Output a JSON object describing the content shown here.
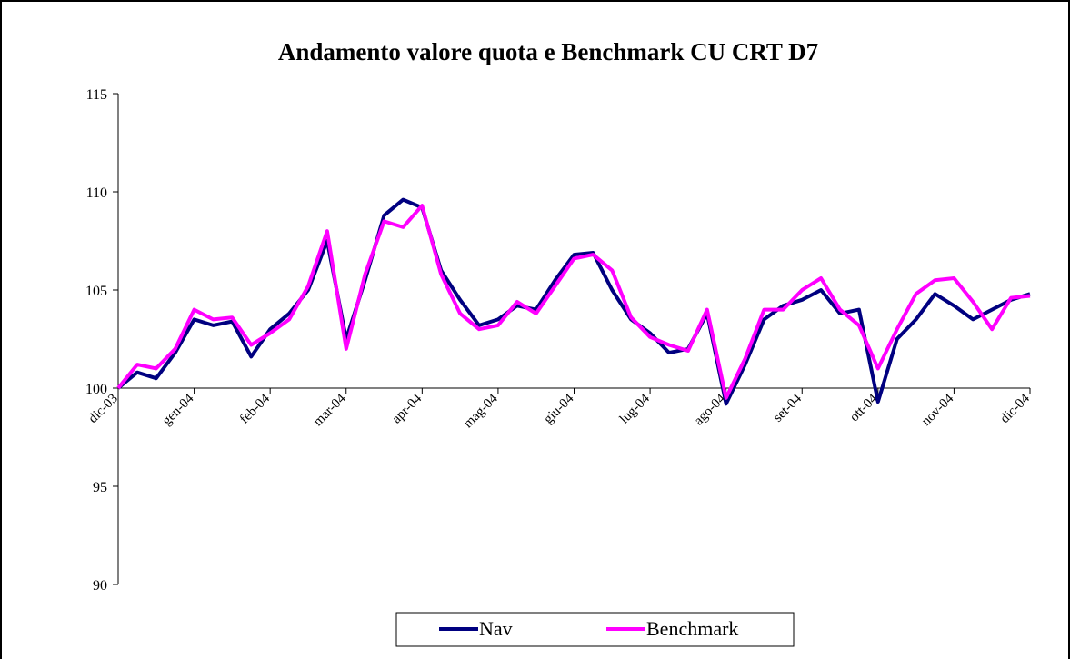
{
  "chart_data": {
    "type": "line",
    "title": "Andamento valore quota e Benchmark CU CRT D7",
    "categories": [
      "dic-03",
      null,
      null,
      null,
      "gen-04",
      null,
      null,
      null,
      "feb-04",
      null,
      null,
      null,
      "mar-04",
      null,
      null,
      null,
      "apr-04",
      null,
      null,
      null,
      "mag-04",
      null,
      null,
      null,
      "giu-04",
      null,
      null,
      null,
      "lug-04",
      null,
      null,
      null,
      "ago-04",
      null,
      null,
      null,
      "set-04",
      null,
      null,
      null,
      "ott-04",
      null,
      null,
      null,
      "nov-04",
      null,
      null,
      null,
      "dic-04"
    ],
    "series": [
      {
        "name": "Nav",
        "color": "#000080",
        "values": [
          100,
          100.8,
          100.5,
          101.8,
          103.5,
          103.2,
          103.4,
          101.6,
          103.0,
          103.8,
          105.0,
          107.5,
          102.5,
          105.5,
          108.8,
          109.6,
          109.2,
          106.0,
          104.5,
          103.2,
          103.5,
          104.2,
          104.0,
          105.5,
          106.8,
          106.9,
          105.0,
          103.5,
          102.8,
          101.8,
          102.0,
          103.8,
          99.2,
          101.2,
          103.5,
          104.2,
          104.5,
          105.0,
          103.8,
          104.0,
          99.3,
          102.5,
          103.5,
          104.8,
          104.2,
          103.5,
          104.0,
          104.5,
          104.8
        ]
      },
      {
        "name": "Benchmark",
        "color": "#ff00ff",
        "values": [
          100,
          101.2,
          101.0,
          102.0,
          104.0,
          103.5,
          103.6,
          102.2,
          102.8,
          103.5,
          105.2,
          108.0,
          102.0,
          105.8,
          108.5,
          108.2,
          109.3,
          105.8,
          103.8,
          103.0,
          103.2,
          104.4,
          103.8,
          105.2,
          106.6,
          106.8,
          106.0,
          103.6,
          102.6,
          102.2,
          101.9,
          104.0,
          99.5,
          101.5,
          104.0,
          104.0,
          105.0,
          105.6,
          104.0,
          103.2,
          101.0,
          103.0,
          104.8,
          105.5,
          105.6,
          104.4,
          103.0,
          104.6,
          104.7
        ]
      }
    ],
    "ylim": [
      90,
      115
    ],
    "yticks": [
      90,
      95,
      100,
      105,
      110,
      115
    ]
  }
}
